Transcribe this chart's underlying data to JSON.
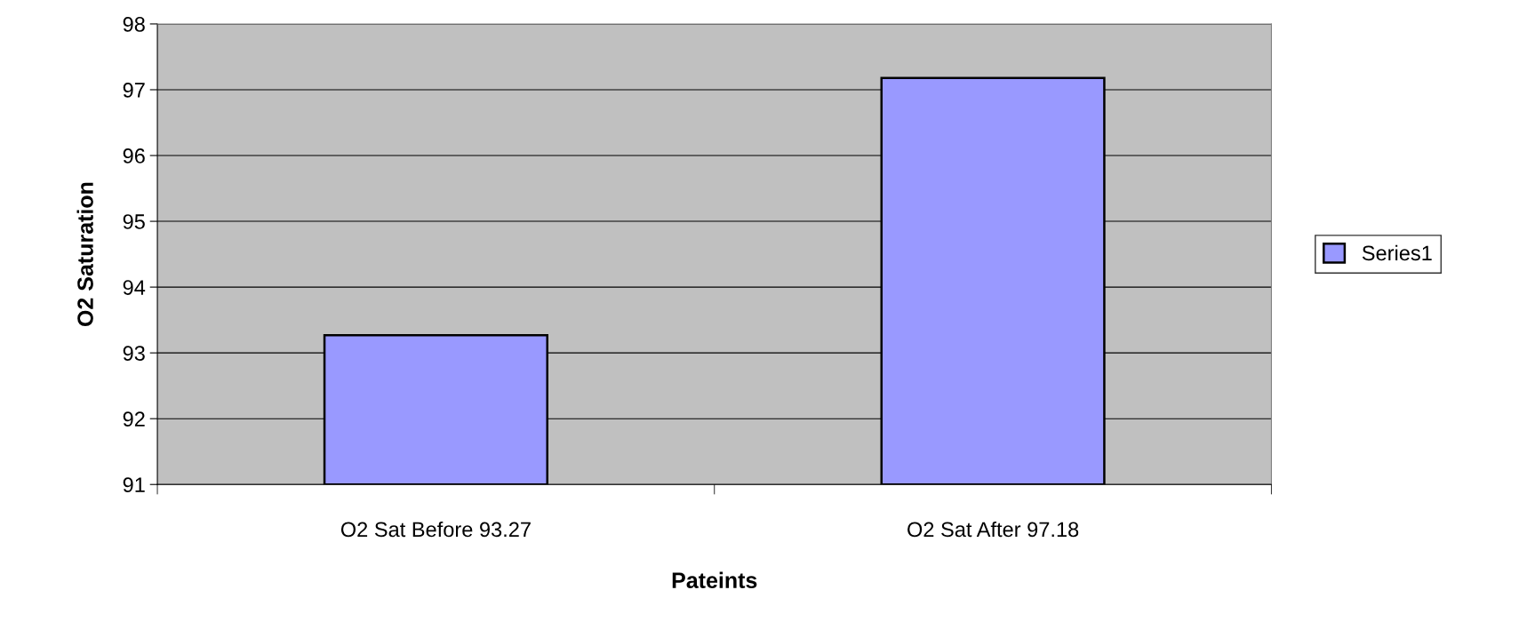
{
  "chart_data": {
    "type": "bar",
    "xlabel": "Pateints",
    "ylabel": "O2 Saturation",
    "categories": [
      "O2 Sat Before 93.27",
      "O2 Sat After 97.18"
    ],
    "series": [
      {
        "name": "Series1",
        "color": "#9999ff",
        "values": [
          93.27,
          97.18
        ]
      }
    ],
    "ylim": [
      91,
      98
    ],
    "yticks": [
      91,
      92,
      93,
      94,
      95,
      96,
      97,
      98
    ],
    "grid": "y",
    "legend": "right"
  }
}
